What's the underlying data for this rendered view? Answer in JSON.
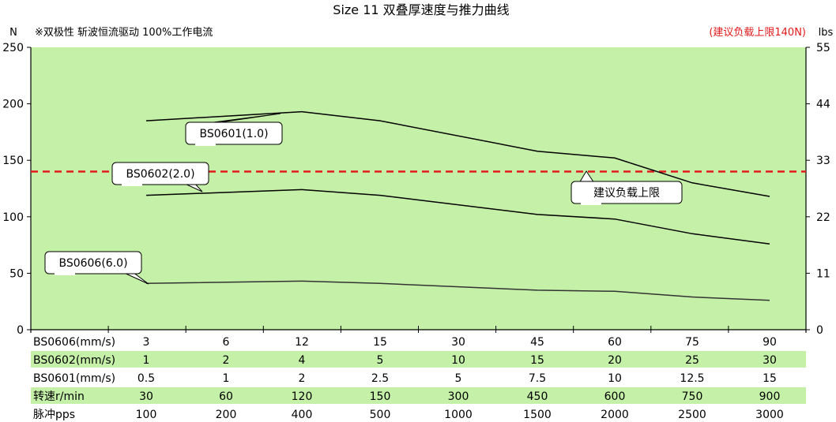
{
  "chart_data": {
    "type": "line",
    "title": "Size 11 双叠厚速度与推力曲线",
    "subtitle": "※双极性 斩波恒流驱动 100%工作电流",
    "left_unit": "N",
    "right_unit": "lbs",
    "limit_note": "(建议负载上限140N)",
    "ylim": [
      0,
      250
    ],
    "y_ticks": [
      0,
      50,
      100,
      150,
      200,
      250
    ],
    "y2_ticks": [
      0,
      11,
      22,
      33,
      44,
      55
    ],
    "grid": false,
    "background_color": "#c5f0a8",
    "limit_color": "#e31a1c",
    "limit_value": 140,
    "limit_label": "建议负载上限",
    "series": [
      {
        "name": "BS0601(1.0)",
        "values": [
          185,
          null,
          193,
          185,
          null,
          158,
          152,
          130,
          118
        ]
      },
      {
        "name": "BS0602(2.0)",
        "values": [
          119,
          null,
          124,
          119,
          null,
          102,
          98,
          85,
          76
        ]
      },
      {
        "name": "BS0606(6.0)",
        "values": [
          41,
          null,
          43,
          41,
          null,
          35,
          34,
          29,
          26
        ]
      }
    ],
    "table": {
      "rows": [
        {
          "label": "BS0606(mm/s)",
          "values": [
            "3",
            "6",
            "12",
            "15",
            "30",
            "45",
            "60",
            "75",
            "90"
          ],
          "shaded": false
        },
        {
          "label": "BS0602(mm/s)",
          "values": [
            "1",
            "2",
            "4",
            "5",
            "10",
            "15",
            "20",
            "25",
            "30"
          ],
          "shaded": true
        },
        {
          "label": "BS0601(mm/s)",
          "values": [
            "0.5",
            "1",
            "2",
            "2.5",
            "5",
            "7.5",
            "10",
            "12.5",
            "15"
          ],
          "shaded": false
        },
        {
          "label": "转速r/min",
          "values": [
            "30",
            "60",
            "120",
            "150",
            "300",
            "450",
            "600",
            "750",
            "900"
          ],
          "shaded": true
        },
        {
          "label": "脉冲pps",
          "values": [
            "100",
            "200",
            "400",
            "500",
            "1000",
            "1500",
            "2000",
            "2500",
            "3000"
          ],
          "shaded": false
        }
      ]
    }
  }
}
